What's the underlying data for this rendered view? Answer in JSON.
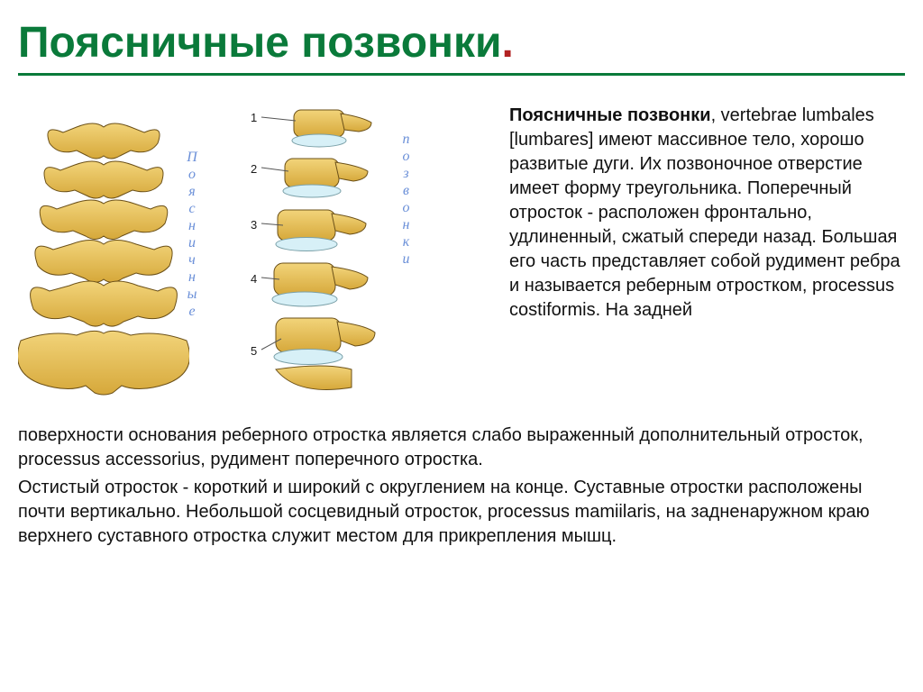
{
  "title": "Поясничные позвонки",
  "title_dot": ".",
  "vlabel_text": "П о я с н и ч н ы е",
  "vlabel2_text": "п о з в о н к и",
  "numbers": [
    "1",
    "2",
    "3",
    "4",
    "5"
  ],
  "para1_lead": "Поясничные позвонки",
  "para1_tail": ", vertebrae lumbales [lumbares] имеют массивное тело, хорошо развитые дуги. Их позвоночное отверстие имеет форму треугольника. Поперечный отросток - расположен фронтально, удлиненный, сжатый спереди назад. Большая его часть представляет собой рудимент ребра и называется реберным отростком, processus costiformis. На задней",
  "para2": "поверхности основания реберного отростка является слабо выраженный дополнительный отросток, processus accessorius, рудимент поперечного отростка.",
  "para3": "Остистый отросток - короткий и широкий с округлением на конце. Суставные отростки расположены почти вертикально. Небольшой сосцевидный отросток, processus mamiilaris, на задненаружном краю верхнего суставного отростка служит местом для прикрепления мышц.",
  "bone_fill": "#e8c45a",
  "bone_shadow": "#c89a2e",
  "bone_edge": "#6b5018",
  "disc_fill": "#d7f0f7",
  "disc_edge": "#7aa0a8"
}
